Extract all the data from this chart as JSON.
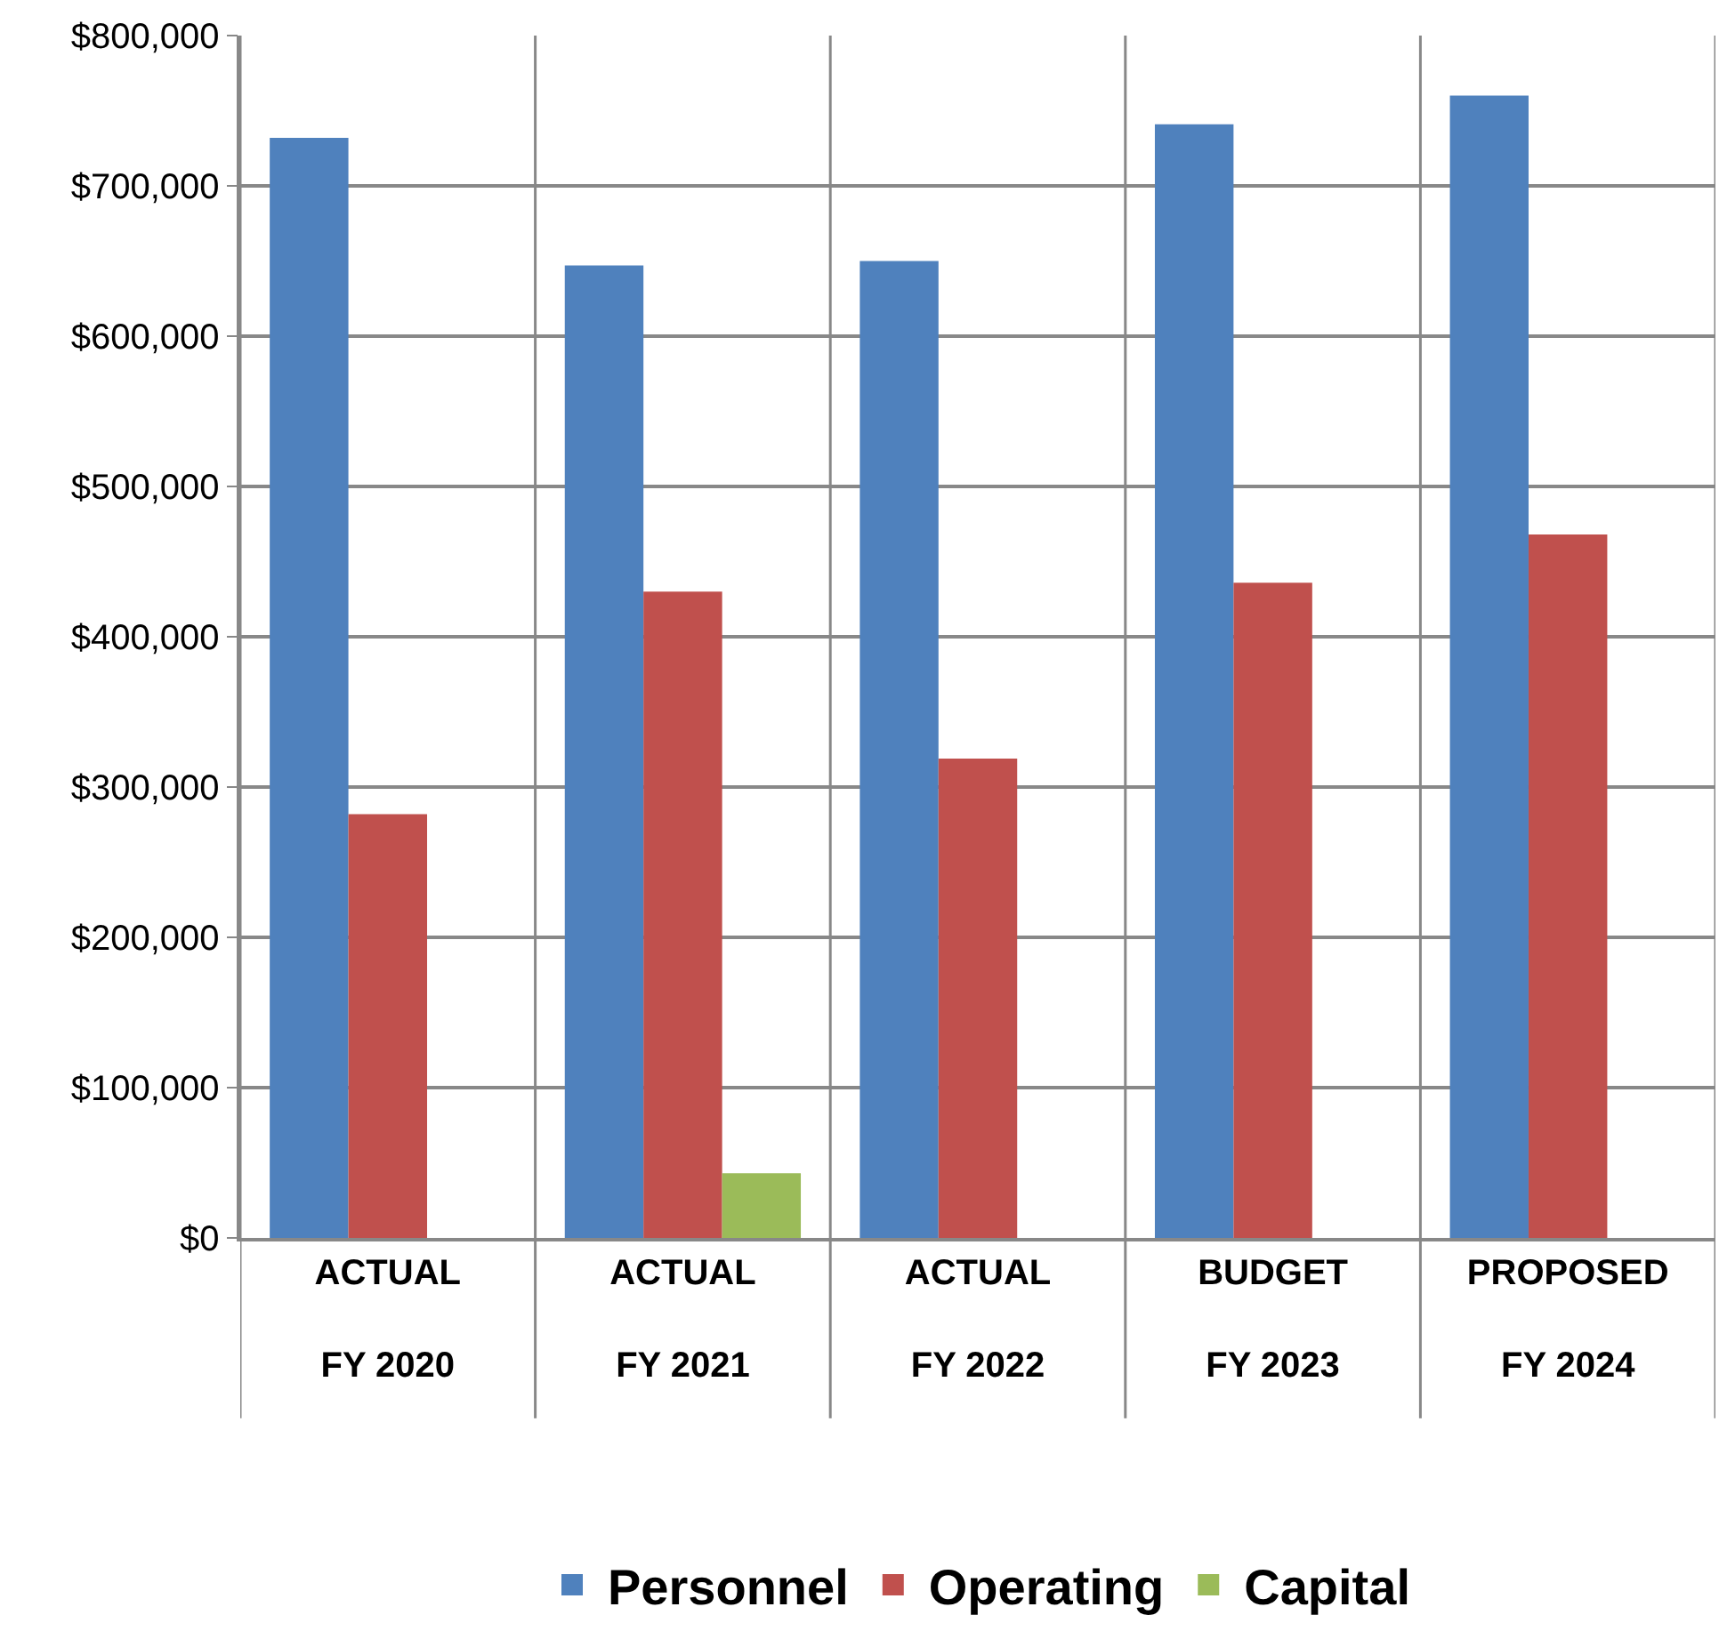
{
  "chart_data": {
    "type": "bar",
    "categories": [
      "ACTUAL\nFY 2020",
      "ACTUAL\nFY 2021",
      "ACTUAL\nFY 2022",
      "BUDGET\nFY 2023",
      "PROPOSED\nFY 2024"
    ],
    "series": [
      {
        "name": "Personnel",
        "color": "#4f81bd",
        "values": [
          732000,
          647000,
          650000,
          741000,
          760000
        ]
      },
      {
        "name": "Operating",
        "color": "#c0504d",
        "values": [
          282000,
          430000,
          319000,
          436000,
          468000
        ]
      },
      {
        "name": "Capital",
        "color": "#9bbb59",
        "values": [
          null,
          43000,
          null,
          null,
          null
        ]
      }
    ],
    "ylim": [
      0,
      800000
    ],
    "yticks": [
      {
        "value": 0,
        "label": "$0"
      },
      {
        "value": 100000,
        "label": "$100,000"
      },
      {
        "value": 200000,
        "label": "$200,000"
      },
      {
        "value": 300000,
        "label": "$300,000"
      },
      {
        "value": 400000,
        "label": "$400,000"
      },
      {
        "value": 500000,
        "label": "$500,000"
      },
      {
        "value": 600000,
        "label": "$600,000"
      },
      {
        "value": 700000,
        "label": "$700,000"
      },
      {
        "value": 800000,
        "label": "$800,000"
      }
    ],
    "grid": true,
    "legend": "bottom"
  }
}
